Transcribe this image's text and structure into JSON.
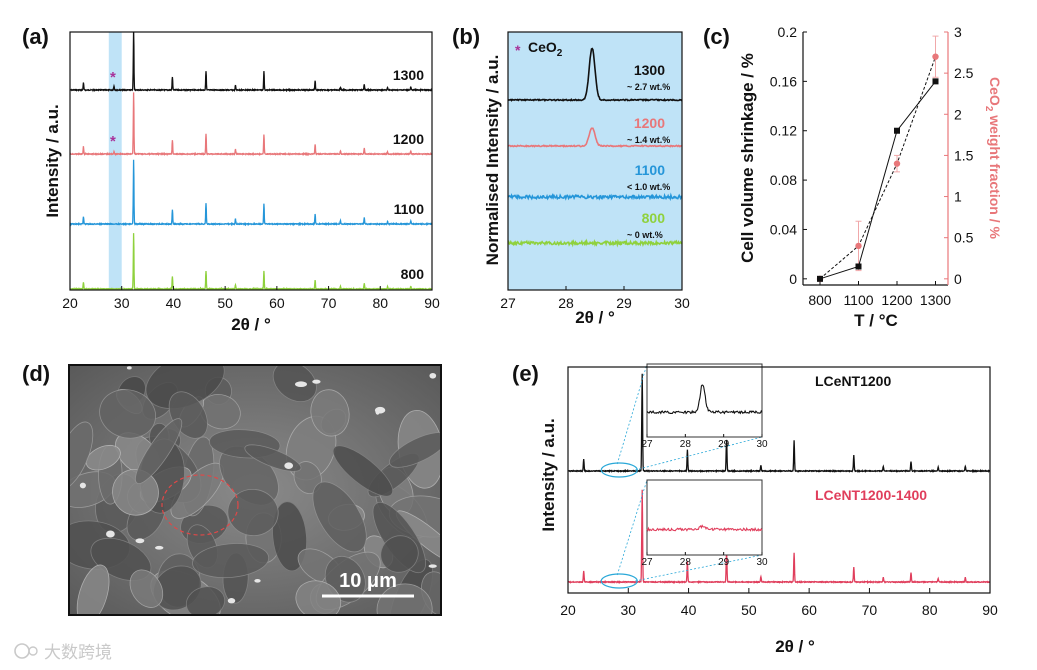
{
  "colors": {
    "c1300": "#111111",
    "c1200": "#e8777a",
    "c1100": "#2596d9",
    "c800": "#8fd13d",
    "shade": "#bfe3f7",
    "ceo2": "#a8329a",
    "axis_right": "#e8777a",
    "e1200": "#e03e5c"
  },
  "panel_labels": {
    "a": "(a)",
    "b": "(b)",
    "c": "(c)",
    "d": "(d)",
    "e": "(e)"
  },
  "watermark": "大数跨境",
  "chart_data": [
    {
      "panel": "a",
      "type": "line",
      "title": "",
      "xlabel": "2θ / °",
      "ylabel": "Intensity / a.u.",
      "xlim": [
        20,
        90
      ],
      "xticks": [
        20,
        30,
        40,
        50,
        60,
        70,
        80,
        90
      ],
      "xtick_labels": [
        "20",
        "30",
        "40",
        "50",
        "60",
        "70",
        "80",
        "90"
      ],
      "shaded_range": [
        27.5,
        30
      ],
      "peaks": [
        [
          22.6,
          0.12
        ],
        [
          28.5,
          0.07
        ],
        [
          32.3,
          1.0
        ],
        [
          39.8,
          0.22
        ],
        [
          46.3,
          0.32
        ],
        [
          52.0,
          0.08
        ],
        [
          57.5,
          0.32
        ],
        [
          67.4,
          0.16
        ],
        [
          72.3,
          0.05
        ],
        [
          76.9,
          0.1
        ],
        [
          81.4,
          0.04
        ],
        [
          85.9,
          0.05
        ]
      ],
      "series": [
        {
          "name": "1300",
          "label": "1300",
          "ceo2_marker": "*",
          "ceo2_fraction": 1.0
        },
        {
          "name": "1200",
          "label": "1200",
          "ceo2_marker": "*",
          "ceo2_fraction": 0.5
        },
        {
          "name": "1100",
          "label": "1100",
          "ceo2_marker": "",
          "ceo2_fraction": 0.0
        },
        {
          "name": "800",
          "label": "800",
          "ceo2_marker": "",
          "ceo2_fraction": 0.0
        }
      ]
    },
    {
      "panel": "b",
      "type": "line",
      "title": "",
      "xlabel": "2θ / °",
      "ylabel": "Normalised Intensity / a.u.",
      "xlim": [
        27,
        30
      ],
      "xticks": [
        27,
        28,
        29,
        30
      ],
      "xtick_labels": [
        "27",
        "28",
        "29",
        "30"
      ],
      "legend": {
        "marker": "*",
        "text": "CeO",
        "sub": "2"
      },
      "peak_position": 28.45,
      "series": [
        {
          "name": "1300",
          "label": "1300",
          "wt_label": "~ 2.7 wt.%",
          "peak_height": 1.0
        },
        {
          "name": "1200",
          "label": "1200",
          "wt_label": "~ 1.4 wt.%",
          "peak_height": 0.35
        },
        {
          "name": "1100",
          "label": "1100",
          "wt_label": "< 1.0 wt.%",
          "peak_height": 0.0
        },
        {
          "name": "800",
          "label": "800",
          "wt_label": "~ 0 wt.%",
          "peak_height": 0.0
        }
      ]
    },
    {
      "panel": "c",
      "type": "scatter",
      "title": "",
      "xlabel": "T / °C",
      "ylabel": "Cell volume shrinkage / %",
      "ylabel2": "CeO",
      "ylabel2_sub": "2",
      "ylabel2_rest": " weight fraction / %",
      "categories": [
        "800",
        "1100",
        "1200",
        "1300"
      ],
      "ylim": [
        -0.005,
        0.2
      ],
      "yticks": [
        0,
        0.04,
        0.08,
        0.12,
        0.16,
        0.2
      ],
      "ytick_labels": [
        "0",
        "0.04",
        "0.08",
        "0.12",
        "0.16",
        "0.2"
      ],
      "y2lim": [
        -0.075,
        3
      ],
      "y2ticks": [
        0,
        0.5,
        1,
        1.5,
        2,
        2.5,
        3
      ],
      "y2tick_labels": [
        "0",
        "0.5",
        "1",
        "1.5",
        "2",
        "2.5",
        "3"
      ],
      "series": [
        {
          "name": "Cell volume shrinkage",
          "axis": "left",
          "values": [
            0.0,
            0.01,
            0.12,
            0.16
          ]
        },
        {
          "name": "CeO2 weight fraction",
          "axis": "right",
          "values": [
            0.0,
            0.4,
            1.4,
            2.7
          ],
          "errors": [
            0.0,
            0.3,
            0.1,
            0.25
          ]
        }
      ]
    },
    {
      "panel": "e",
      "type": "line",
      "title": "",
      "xlabel": "2θ / °",
      "ylabel": "Intensity / a.u.",
      "xlim": [
        20,
        90
      ],
      "xticks": [
        20,
        30,
        40,
        50,
        60,
        70,
        80,
        90
      ],
      "xtick_labels": [
        "20",
        "30",
        "40",
        "50",
        "60",
        "70",
        "80",
        "90"
      ],
      "peaks": [
        [
          22.6,
          0.12
        ],
        [
          32.3,
          1.0
        ],
        [
          39.8,
          0.22
        ],
        [
          46.3,
          0.32
        ],
        [
          52.0,
          0.06
        ],
        [
          57.5,
          0.32
        ],
        [
          67.4,
          0.16
        ],
        [
          72.3,
          0.05
        ],
        [
          76.9,
          0.1
        ],
        [
          81.4,
          0.04
        ],
        [
          85.9,
          0.05
        ]
      ],
      "inset": {
        "xticks": [
          27,
          28,
          29,
          30
        ],
        "xtick_labels": [
          "27",
          "28",
          "29",
          "30"
        ]
      },
      "series": [
        {
          "name": "LCeNT1200",
          "label": "LCeNT1200",
          "inset_peak": 1.0
        },
        {
          "name": "LCeNT1200-1400",
          "label": "LCeNT1200-1400",
          "inset_peak": 0.12
        }
      ]
    }
  ],
  "sem": {
    "scale_bar_label": "10 μm"
  }
}
